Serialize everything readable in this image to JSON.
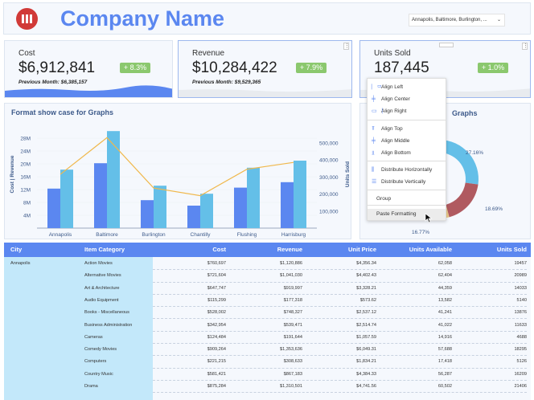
{
  "header": {
    "title": "Company Name",
    "filter_value": "Annapolis, Baltimore, Burlington, ...",
    "logo": "company-logo"
  },
  "kpis": [
    {
      "label": "Cost",
      "value": "$6,912,841",
      "change": "+ 8.3%",
      "previous": "Previous Month: $6,385,157"
    },
    {
      "label": "Revenue",
      "value": "$10,284,422",
      "change": "+ 7.9%",
      "previous": "Previous Month: $9,529,365"
    },
    {
      "label": "Units Sold",
      "value": "187,445",
      "change": "+ 1.0%"
    }
  ],
  "colors": {
    "accent": "#5b87f0",
    "cost": "#5b87f0",
    "revenue": "#64bfe8",
    "units_line": "#f0b84c",
    "positive": "#8bc86e",
    "city_col": "#c3e8fa"
  },
  "chart_data": [
    {
      "type": "bar",
      "title": "Format show case for Graphs",
      "categories": [
        "Annapolis",
        "Baltimore",
        "Burlington",
        "Chantilly",
        "Flushing",
        "Harrisburg"
      ],
      "ylabel": "Cost  |  Revenue",
      "y2label": "Units Sold",
      "ylim": [
        0,
        30000000
      ],
      "y2lim": [
        0,
        550000
      ],
      "yticks": [
        "4M",
        "8M",
        "12M",
        "16M",
        "20M",
        "24M",
        "28M"
      ],
      "y2ticks": [
        "100,000",
        "200,000",
        "300,000",
        "400,000",
        "500,000"
      ],
      "series": [
        {
          "name": "Cost",
          "type": "bar",
          "values": [
            12300000,
            20200000,
            8700000,
            7000000,
            12600000,
            14300000
          ]
        },
        {
          "name": "Revenue",
          "type": "bar",
          "values": [
            18200000,
            30200000,
            13200000,
            10700000,
            18800000,
            21000000
          ]
        },
        {
          "name": "Units Sold",
          "type": "line",
          "axis": "right",
          "values": [
            315000,
            530000,
            235000,
            190000,
            345000,
            385000
          ]
        }
      ]
    },
    {
      "type": "pie",
      "title_visible": "Graphs",
      "slices": [
        {
          "label": "27.16%",
          "value": 27.16,
          "color": "#64bfe8"
        },
        {
          "label": "18.69%",
          "value": 18.69,
          "color": "#b05a60"
        },
        {
          "label": "16.77%",
          "value": 16.77,
          "color": "#ebc98a"
        }
      ]
    }
  ],
  "context_menu": {
    "items": [
      {
        "label": "Align Left",
        "icon": "align-left-icon"
      },
      {
        "label": "Align Center",
        "icon": "align-center-icon"
      },
      {
        "label": "Align Right",
        "icon": "align-right-icon"
      },
      {
        "label": "Align Top",
        "icon": "align-top-icon"
      },
      {
        "label": "Align Middle",
        "icon": "align-middle-icon"
      },
      {
        "label": "Align Bottom",
        "icon": "align-bottom-icon"
      },
      {
        "label": "Distribute Horizontally",
        "icon": "distribute-horizontal-icon"
      },
      {
        "label": "Distribute Vertically",
        "icon": "distribute-vertical-icon"
      },
      {
        "label": "Group"
      },
      {
        "label": "Paste Formatting"
      }
    ]
  },
  "table": {
    "columns": [
      "City",
      "Item Category",
      "Cost",
      "Revenue",
      "Unit Price",
      "Units Available",
      "Units Sold"
    ],
    "city": "Annapolis",
    "rows": [
      [
        "Action Movies",
        "$760,697",
        "$1,120,886",
        "$4,356.34",
        "62,058",
        "19457"
      ],
      [
        "Alternative Movies",
        "$721,604",
        "$1,041,030",
        "$4,402.43",
        "62,404",
        "20989"
      ],
      [
        "Art & Architecture",
        "$647,747",
        "$919,997",
        "$3,328.21",
        "44,359",
        "14033"
      ],
      [
        "Audio Equipment",
        "$115,299",
        "$177,318",
        "$573.62",
        "13,582",
        "5140"
      ],
      [
        "Books - Miscellaneous",
        "$528,002",
        "$748,327",
        "$2,537.12",
        "41,241",
        "13876"
      ],
      [
        "Business Administration",
        "$342,954",
        "$539,471",
        "$2,514.74",
        "41,022",
        "11633"
      ],
      [
        "Cameras",
        "$124,484",
        "$191,644",
        "$1,057.59",
        "14,916",
        "4688"
      ],
      [
        "Comedy Movies",
        "$909,264",
        "$1,353,636",
        "$6,049.31",
        "57,688",
        "18295"
      ],
      [
        "Computers",
        "$221,215",
        "$308,633",
        "$1,834.21",
        "17,418",
        "5126"
      ],
      [
        "Country Music",
        "$581,421",
        "$867,183",
        "$4,384.33",
        "56,287",
        "16209"
      ],
      [
        "Drama",
        "$875,284",
        "$1,310,501",
        "$4,741.56",
        "60,502",
        "21406"
      ]
    ]
  }
}
